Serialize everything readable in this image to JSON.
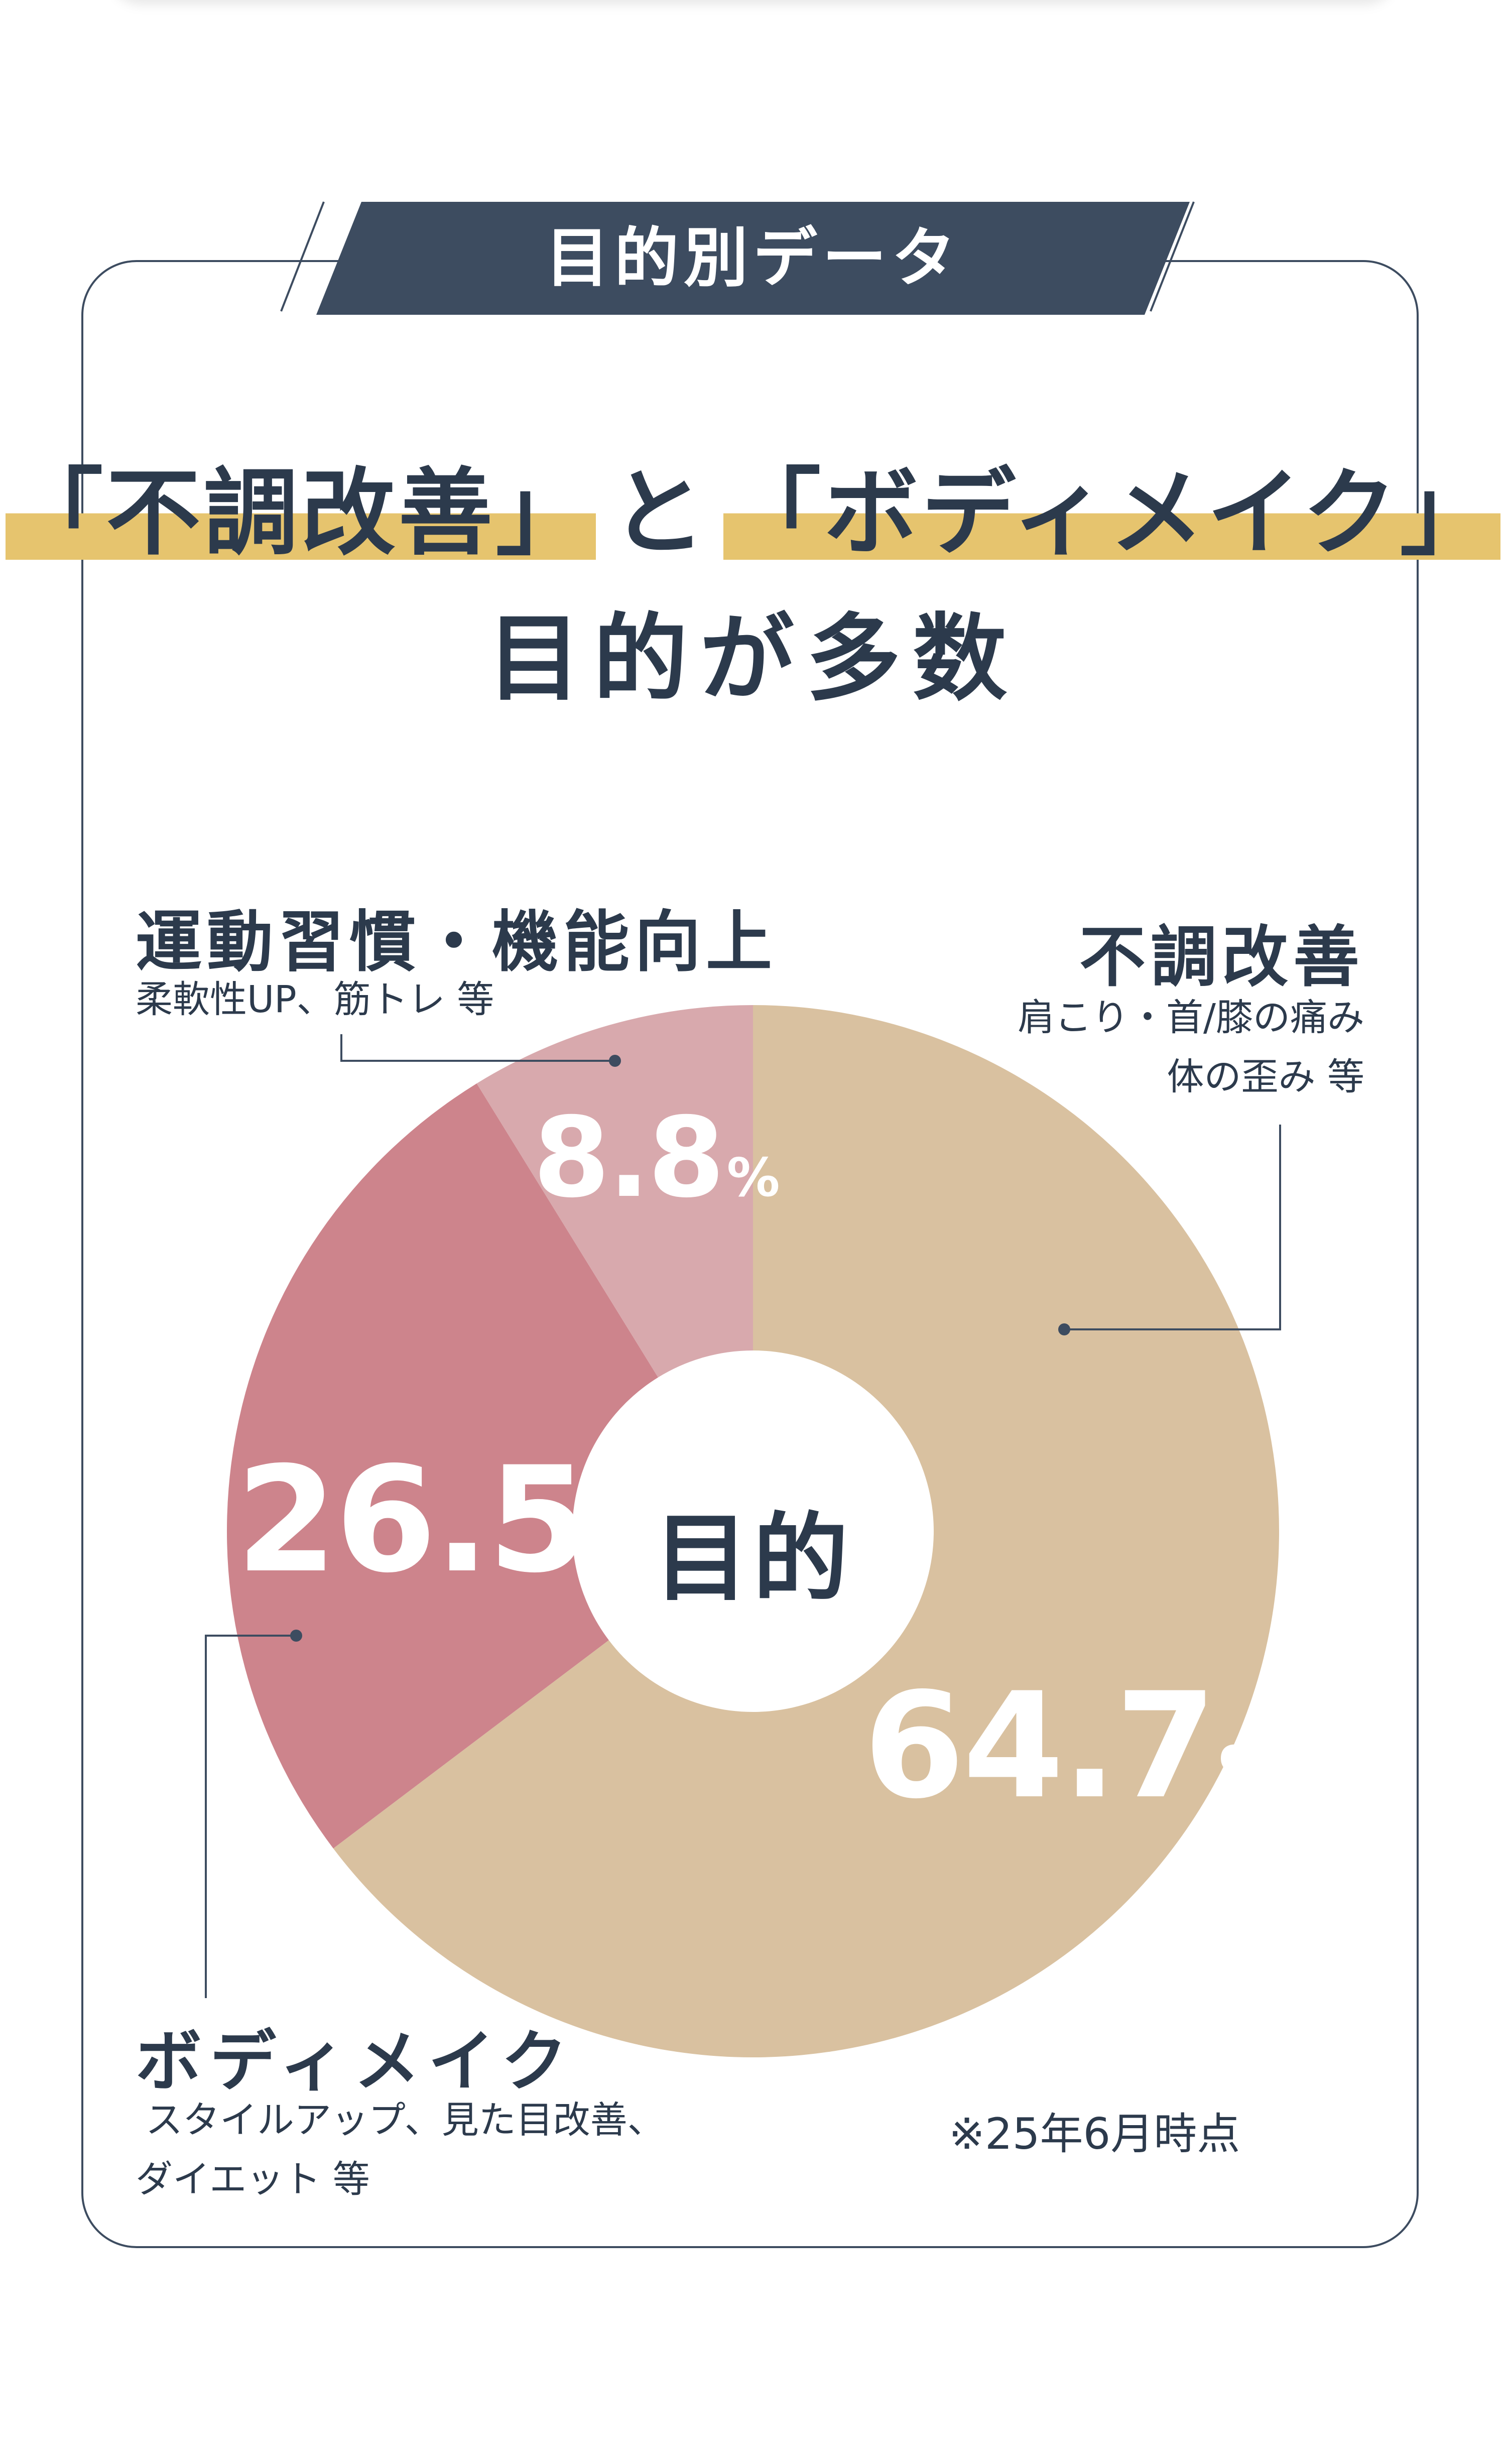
{
  "banner": {
    "label": "目的別データ"
  },
  "headline": {
    "part1": "「不調改善」",
    "connector": "と",
    "part2": "「ボディメイク」",
    "line2": "目的が多数"
  },
  "chart_data": {
    "type": "pie",
    "center_label": "目的",
    "slices": [
      {
        "label": "不調改善",
        "value": 64.7,
        "display": "64.7",
        "color": "#d9c1a0",
        "description_lines": [
          "肩こり・首/膝の痛み",
          "体の歪み 等"
        ]
      },
      {
        "label": "ボディメイク",
        "value": 26.5,
        "display": "26.5",
        "color": "#cd848c",
        "description_lines": [
          "スタイルアップ、見た目改善、",
          "ダイエット 等"
        ]
      },
      {
        "label": "運動習慣・機能向上",
        "value": 8.8,
        "display": "8.8",
        "color": "#d8a9ad",
        "description_lines": [
          "柔軟性UP、筋トレ 等"
        ]
      }
    ],
    "unit": "%"
  },
  "note": "※25年6月時点",
  "colors": {
    "navy": "#3d4c60",
    "text": "#2c3a4c",
    "highlight": "#e6c46e"
  }
}
